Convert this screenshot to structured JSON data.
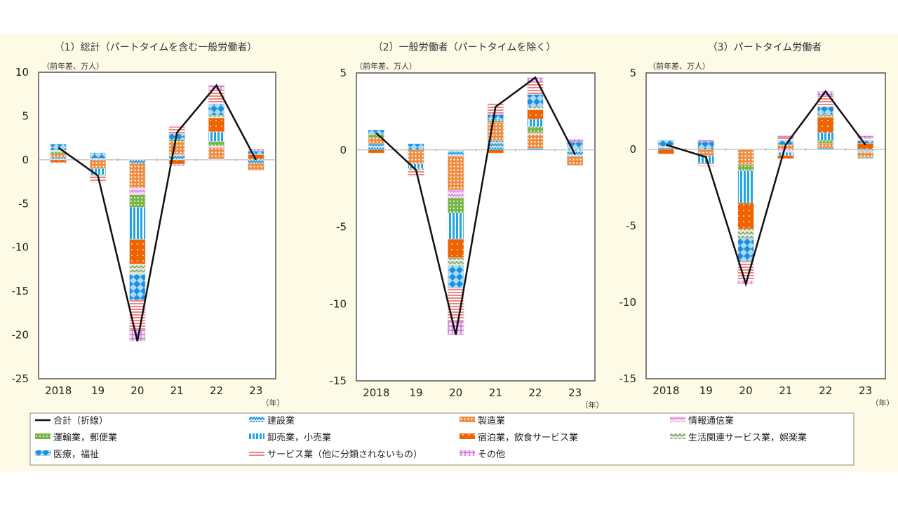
{
  "chart_data": {
    "type": "bar",
    "subtype": "stacked-bar-with-line",
    "categories": [
      "2018",
      "19",
      "20",
      "21",
      "22",
      "23"
    ],
    "x_unit": "（年）",
    "segments": [
      {
        "key": "con",
        "name": "建設業",
        "color": "#1e8fd6"
      },
      {
        "key": "mfg",
        "name": "製造業",
        "color": "#f08a3c"
      },
      {
        "key": "info",
        "name": "情報通信業",
        "color": "#d27fd6"
      },
      {
        "key": "trans",
        "name": "運輸業，郵便業",
        "color": "#78b446"
      },
      {
        "key": "whole",
        "name": "卸売業，小売業",
        "color": "#1ea6e6"
      },
      {
        "key": "hotel",
        "name": "宿泊業，飲食サービス業",
        "color": "#f06400"
      },
      {
        "key": "life",
        "name": "生活関連サービス業，娯楽業",
        "color": "#7a9a62"
      },
      {
        "key": "med",
        "name": "医療，福祉",
        "color": "#1e8fe0"
      },
      {
        "key": "svc",
        "name": "サービス業（他に分類されないもの）",
        "color": "#f08484"
      },
      {
        "key": "other",
        "name": "その他",
        "color": "#c060c8"
      }
    ],
    "line_label": "合計（折線）",
    "panels": [
      {
        "title": "（1）総計（パートタイムを含む一般労働者）",
        "ylabel": "（前年差、万人）",
        "ylim": [
          -25,
          10
        ],
        "yticks": [
          "10",
          "5",
          "0",
          "-5",
          "-10",
          "-15",
          "-20",
          "-25"
        ],
        "ytick_values": [
          10,
          5,
          0,
          -5,
          -10,
          -15,
          -20,
          -25
        ],
        "total": [
          1.4,
          -1.8,
          -20.7,
          3.1,
          8.5,
          0.0
        ],
        "values": {
          "con": [
            0.3,
            0.2,
            -0.4,
            0.6,
            0.1,
            -0.4
          ],
          "mfg": [
            0.4,
            -1.0,
            -2.8,
            1.5,
            1.3,
            -0.8
          ],
          "info": [
            0,
            0,
            -0.8,
            0,
            0.2,
            0
          ],
          "trans": [
            0.2,
            0,
            -1.4,
            0.2,
            0.5,
            0
          ],
          "whole": [
            0,
            -0.7,
            -3.7,
            0,
            1.1,
            0.1
          ],
          "hotel": [
            -0.3,
            0,
            -2.8,
            -0.5,
            1.6,
            0.5
          ],
          "life": [
            0.2,
            -0.2,
            -1.2,
            0,
            0.3,
            0
          ],
          "med": [
            0.7,
            0.6,
            -2.9,
            0.7,
            1.3,
            0.4
          ],
          "svc": [
            0,
            -0.7,
            -3.4,
            0.8,
            1.6,
            0
          ],
          "other": [
            -0.1,
            0,
            -1.3,
            -0.2,
            0.5,
            0.2
          ]
        }
      },
      {
        "title": "（2）一般労働者（パートタイムを除く）",
        "ylabel": "（前年差、万人）",
        "ylim": [
          -15,
          5
        ],
        "yticks": [
          "5",
          "0",
          "-5",
          "-10",
          "-15"
        ],
        "ytick_values": [
          5,
          0,
          -5,
          -10,
          -15
        ],
        "total": [
          1.1,
          -1.3,
          -12.0,
          2.8,
          4.7,
          -0.3
        ],
        "values": {
          "con": [
            0.4,
            0,
            -0.4,
            0.6,
            0.1,
            -0.4
          ],
          "mfg": [
            0.4,
            -0.9,
            -2.2,
            1.2,
            0.9,
            -0.6
          ],
          "info": [
            0,
            0,
            -0.5,
            0,
            0.1,
            0
          ],
          "trans": [
            0.2,
            0,
            -1.0,
            0.1,
            0.4,
            0
          ],
          "whole": [
            0,
            -0.3,
            -1.7,
            0.1,
            0.5,
            0.1
          ],
          "hotel": [
            -0.2,
            0,
            -1.2,
            -0.2,
            0.6,
            0
          ],
          "life": [
            0,
            -0.1,
            -0.5,
            0,
            0.2,
            0
          ],
          "med": [
            0.3,
            0.4,
            -1.5,
            0.3,
            0.8,
            0.4
          ],
          "svc": [
            0,
            -0.4,
            -2.1,
            0.7,
            0.8,
            0
          ],
          "other": [
            0,
            0,
            -0.9,
            0,
            0.3,
            0.2
          ]
        }
      },
      {
        "title": "（3）パートタイム労働者",
        "ylabel": "（前年差、万人）",
        "ylim": [
          -15,
          5
        ],
        "yticks": [
          "5",
          "0",
          "-5",
          "-10",
          "-15"
        ],
        "ytick_values": [
          5,
          0,
          -5,
          -10,
          -15
        ],
        "total": [
          0.3,
          -0.5,
          -8.8,
          0.3,
          3.8,
          0.3
        ],
        "values": {
          "con": [
            0.1,
            0,
            0,
            0,
            0.1,
            -0.2
          ],
          "mfg": [
            0,
            -0.4,
            -1.0,
            0.3,
            0.3,
            -0.3
          ],
          "info": [
            0,
            0,
            0,
            -0.2,
            0,
            0
          ],
          "trans": [
            0,
            0,
            -0.4,
            0,
            0.2,
            0
          ],
          "whole": [
            0,
            -0.5,
            -2.1,
            -0.2,
            0.5,
            0
          ],
          "hotel": [
            -0.3,
            0,
            -1.7,
            -0.2,
            1.0,
            0.4
          ],
          "life": [
            0.1,
            0,
            -0.6,
            0,
            0.2,
            -0.1
          ],
          "med": [
            0.4,
            0.5,
            -1.5,
            0.3,
            0.5,
            0.2
          ],
          "svc": [
            0,
            -0.2,
            -1.3,
            0.2,
            0.7,
            0.1
          ],
          "other": [
            0,
            0.1,
            -0.2,
            0.1,
            0.3,
            0.2
          ]
        }
      }
    ]
  }
}
